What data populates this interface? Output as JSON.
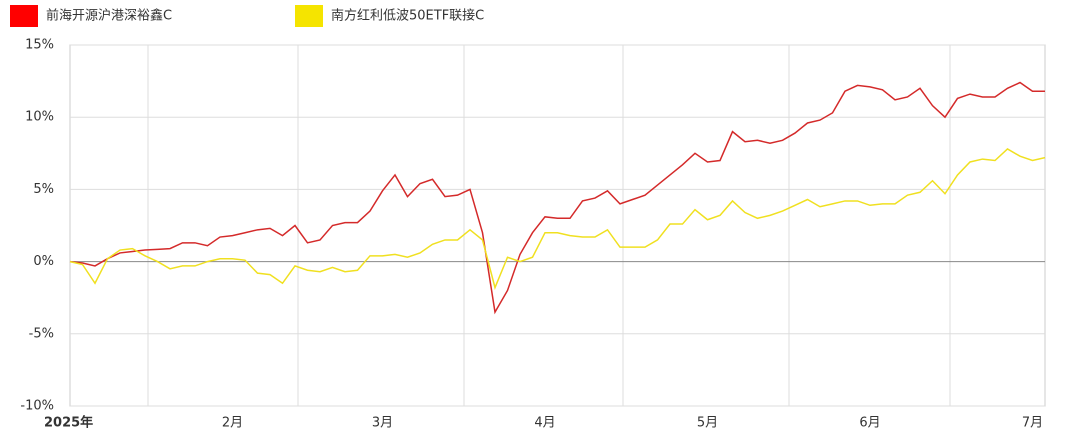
{
  "chart_data": {
    "type": "line",
    "categories": [
      "2025年",
      null,
      null,
      null,
      null,
      null,
      null,
      null,
      null,
      null,
      null,
      null,
      null,
      "2月",
      null,
      null,
      null,
      null,
      null,
      null,
      null,
      null,
      null,
      null,
      null,
      "3月",
      null,
      null,
      null,
      null,
      null,
      null,
      null,
      null,
      null,
      null,
      null,
      null,
      "4月",
      null,
      null,
      null,
      null,
      null,
      null,
      null,
      null,
      null,
      null,
      null,
      null,
      "5月",
      null,
      null,
      null,
      null,
      null,
      null,
      null,
      null,
      null,
      null,
      null,
      null,
      "6月",
      null,
      null,
      null,
      null,
      null,
      null,
      null,
      null,
      null,
      null,
      null,
      null,
      "7月",
      null
    ],
    "series": [
      {
        "name": "前海开源沪港深裕鑫C",
        "color": "#d42a2a",
        "values": [
          0,
          -0.1,
          -0.3,
          0.2,
          0.6,
          0.7,
          0.8,
          0.85,
          0.9,
          1.3,
          1.3,
          1.1,
          1.7,
          1.8,
          2.0,
          2.2,
          2.3,
          1.8,
          2.5,
          1.3,
          1.5,
          2.5,
          2.7,
          2.7,
          3.5,
          4.9,
          6.0,
          4.5,
          5.4,
          5.7,
          4.5,
          4.6,
          5.0,
          2.0,
          -3.5,
          -2.0,
          0.5,
          2.0,
          3.1,
          3.0,
          3.0,
          4.2,
          4.4,
          4.9,
          4.0,
          4.3,
          4.6,
          5.3,
          6.0,
          6.7,
          7.5,
          6.9,
          7.0,
          9.0,
          8.3,
          8.4,
          8.2,
          8.4,
          8.9,
          9.6,
          9.8,
          10.3,
          11.8,
          12.2,
          12.1,
          11.9,
          11.2,
          11.4,
          12.0,
          10.8,
          10.0,
          11.3,
          11.6,
          11.4,
          11.4,
          12.0,
          12.4,
          11.8,
          11.8
        ]
      },
      {
        "name": "南方红利低波50ETF联接C",
        "color": "#f0e020",
        "values": [
          0,
          -0.2,
          -1.5,
          0.2,
          0.8,
          0.9,
          0.4,
          0,
          -0.5,
          -0.3,
          -0.3,
          0,
          0.2,
          0.2,
          0.1,
          -0.8,
          -0.9,
          -1.5,
          -0.3,
          -0.6,
          -0.7,
          -0.4,
          -0.7,
          -0.6,
          0.4,
          0.4,
          0.5,
          0.3,
          0.6,
          1.2,
          1.5,
          1.5,
          2.2,
          1.5,
          -1.8,
          0.3,
          0.0,
          0.3,
          2.0,
          2.0,
          1.8,
          1.7,
          1.7,
          2.2,
          1.0,
          1.0,
          1.0,
          1.5,
          2.6,
          2.6,
          3.6,
          2.9,
          3.2,
          4.2,
          3.4,
          3.0,
          3.2,
          3.5,
          3.9,
          4.3,
          3.8,
          4.0,
          4.2,
          4.2,
          3.9,
          4.0,
          4.0,
          4.6,
          4.8,
          5.6,
          4.7,
          6.0,
          6.9,
          7.1,
          7.0,
          7.8,
          7.3,
          7.0,
          7.2
        ]
      }
    ],
    "ylim": [
      -10,
      15
    ],
    "yticks": [
      {
        "value": -10,
        "label": "-10%"
      },
      {
        "value": -5,
        "label": "-5%"
      },
      {
        "value": 0,
        "label": "0%"
      },
      {
        "value": 5,
        "label": "5%"
      },
      {
        "value": 10,
        "label": "10%"
      },
      {
        "value": 15,
        "label": "15%"
      }
    ],
    "grid": true
  }
}
